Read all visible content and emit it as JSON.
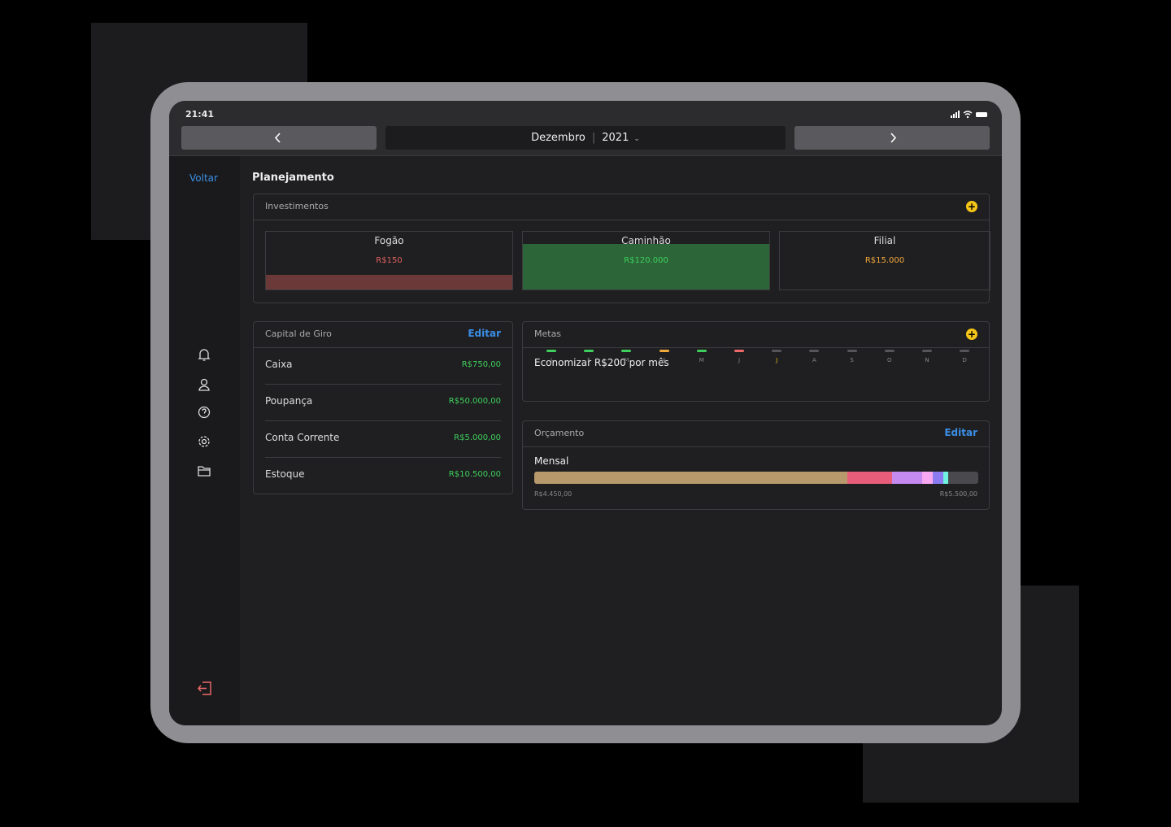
{
  "status_bar": {
    "time": "21:41"
  },
  "nav": {
    "month": "Dezembro",
    "year": "2021"
  },
  "sidebar": {
    "back": "Voltar"
  },
  "page": {
    "title": "Planejamento"
  },
  "investments": {
    "title": "Investimentos",
    "cards": [
      {
        "name": "Fogão",
        "value": "R$150",
        "color": "#e0605e"
      },
      {
        "name": "Caminhão",
        "value": "R$120.000",
        "color": "#3fcf5c"
      },
      {
        "name": "Filial",
        "value": "R$15.000",
        "color": "#f2a93b"
      }
    ]
  },
  "working_capital": {
    "title": "Capital de Giro",
    "action": "Editar",
    "rows": [
      [
        "Caixa",
        "R$750,00"
      ],
      [
        "Poupança",
        "R$50.000,00"
      ],
      [
        "Conta Corrente",
        "R$5.000,00"
      ],
      [
        "Estoque",
        "R$10.500,00"
      ]
    ]
  },
  "goals": {
    "title": "Metas",
    "goal": "Economizar R$200 por mês",
    "months": [
      {
        "label": "J",
        "color": "#3fcf5c"
      },
      {
        "label": "F",
        "color": "#3fcf5c"
      },
      {
        "label": "M",
        "color": "#3fcf5c"
      },
      {
        "label": "A",
        "color": "#f2a93b"
      },
      {
        "label": "M",
        "color": "#3fcf5c"
      },
      {
        "label": "J",
        "color": "#f06a6a"
      },
      {
        "label": "J",
        "color": "#55555a"
      },
      {
        "label": "A",
        "color": "#55555a"
      },
      {
        "label": "S",
        "color": "#55555a"
      },
      {
        "label": "O",
        "color": "#55555a"
      },
      {
        "label": "N",
        "color": "#55555a"
      },
      {
        "label": "D",
        "color": "#55555a"
      }
    ]
  },
  "budget": {
    "title": "Orçamento",
    "action": "Editar",
    "period": "Mensal",
    "spent": "R$4.450,00",
    "limit": "R$5.500,00"
  }
}
